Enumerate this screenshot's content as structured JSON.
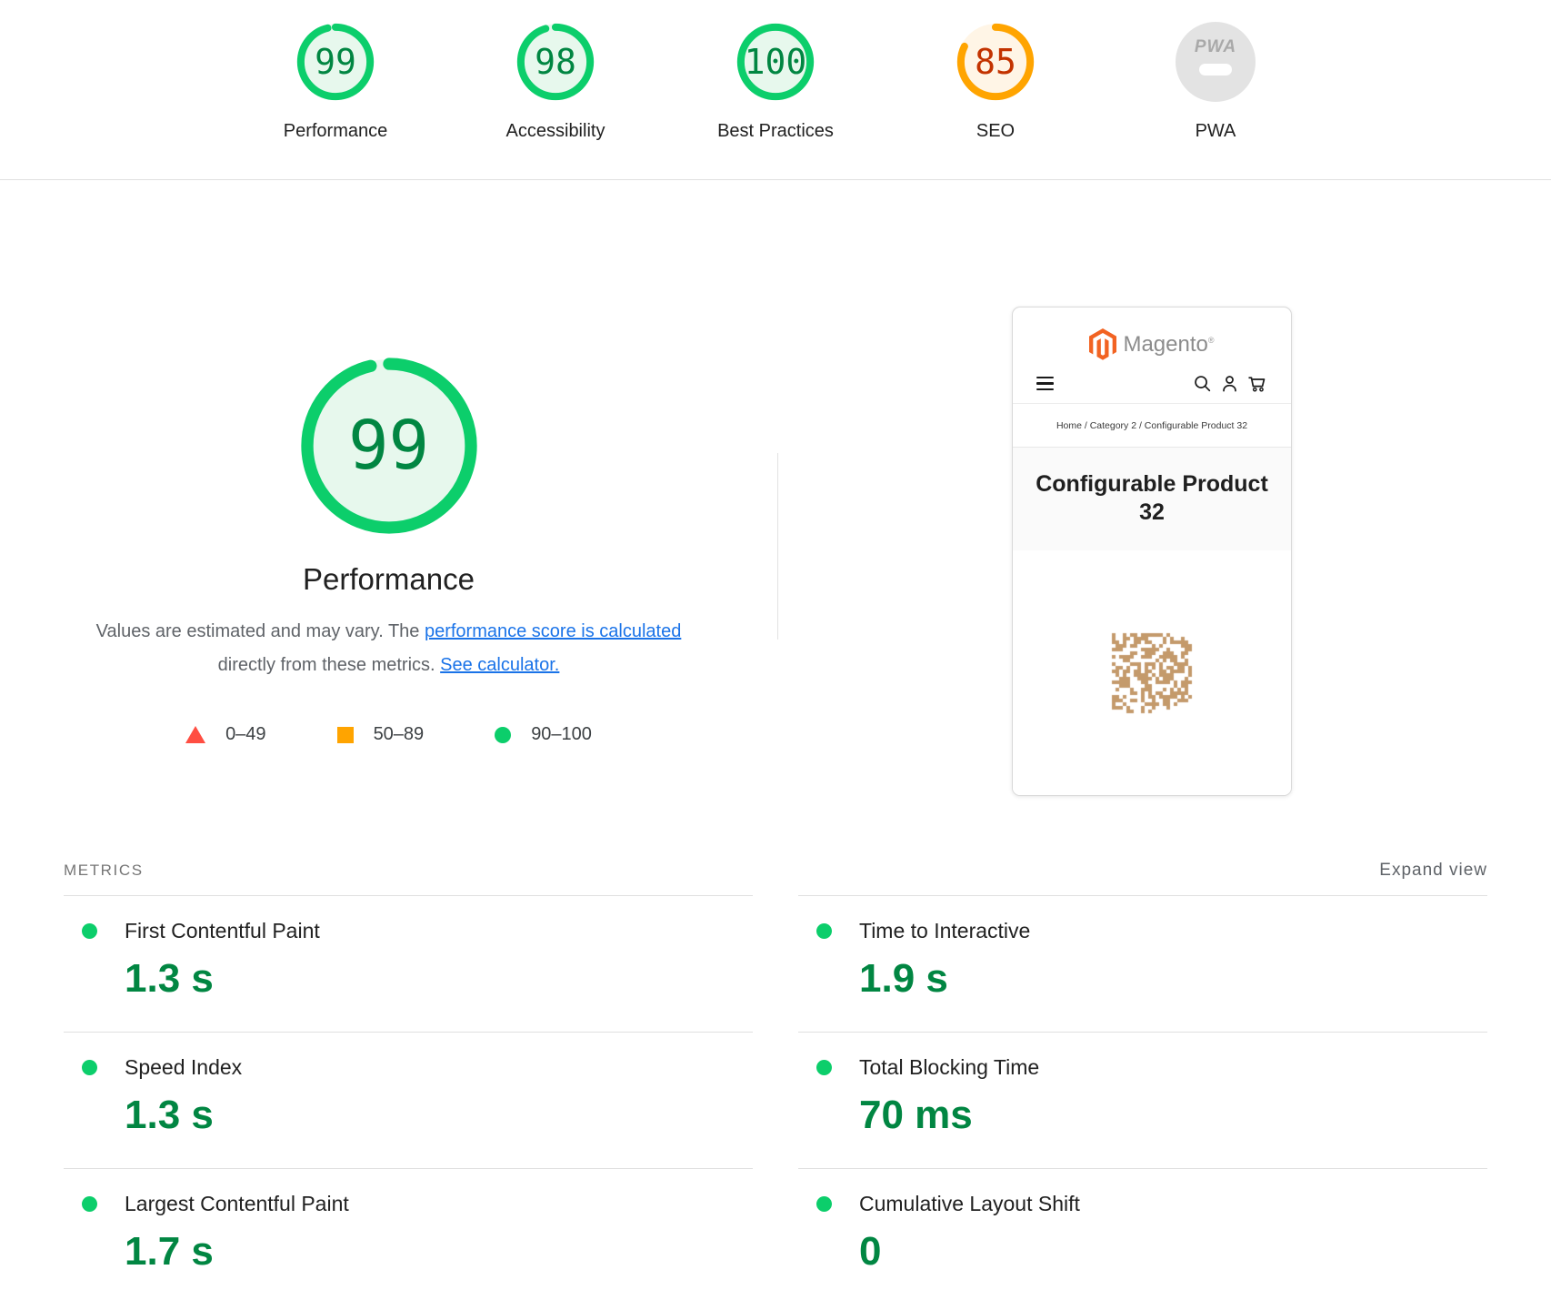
{
  "summary": {
    "gauges": [
      {
        "label": "Performance",
        "score": "99",
        "status": "good"
      },
      {
        "label": "Accessibility",
        "score": "98",
        "status": "good"
      },
      {
        "label": "Best Practices",
        "score": "100",
        "status": "good"
      },
      {
        "label": "SEO",
        "score": "85",
        "status": "average"
      },
      {
        "label": "PWA",
        "badge": "PWA",
        "status": "not-applicable"
      }
    ]
  },
  "performance_section": {
    "score": "99",
    "title": "Performance",
    "description": {
      "text1": "Values are estimated and may vary. The ",
      "link1": "performance score is calculated",
      "text2": " directly from these metrics. ",
      "link2": "See calculator."
    },
    "legend": [
      {
        "range": "0–49",
        "shape": "triangle",
        "color": "#ff4e42"
      },
      {
        "range": "50–89",
        "shape": "square",
        "color": "#ffa400"
      },
      {
        "range": "90–100",
        "shape": "circle",
        "color": "#0cce6b"
      }
    ]
  },
  "preview": {
    "brand": "Magento",
    "brand_mark": "®",
    "breadcrumb": "Home / Category 2 / Configurable Product 32",
    "product_title": "Configurable Product 32"
  },
  "metrics": {
    "section_label": "METRICS",
    "expand_label": "Expand view",
    "items": [
      {
        "name": "First Contentful Paint",
        "value": "1.3 s"
      },
      {
        "name": "Speed Index",
        "value": "1.3 s"
      },
      {
        "name": "Largest Contentful Paint",
        "value": "1.7 s"
      },
      {
        "name": "Time to Interactive",
        "value": "1.9 s"
      },
      {
        "name": "Total Blocking Time",
        "value": "70 ms"
      },
      {
        "name": "Cumulative Layout Shift",
        "value": "0"
      }
    ]
  },
  "colors": {
    "good_arc": "#0cce6b",
    "good_fill": "#e7f8ed",
    "good_text": "#018642",
    "average_arc": "#ffa400",
    "average_fill": "#fff5e6",
    "average_text": "#c33300",
    "fail": "#ff4e42",
    "link": "#1a73e8",
    "na_badge": "#e3e3e3",
    "magento_orange": "#f26322",
    "qr": "#c49a6b"
  }
}
